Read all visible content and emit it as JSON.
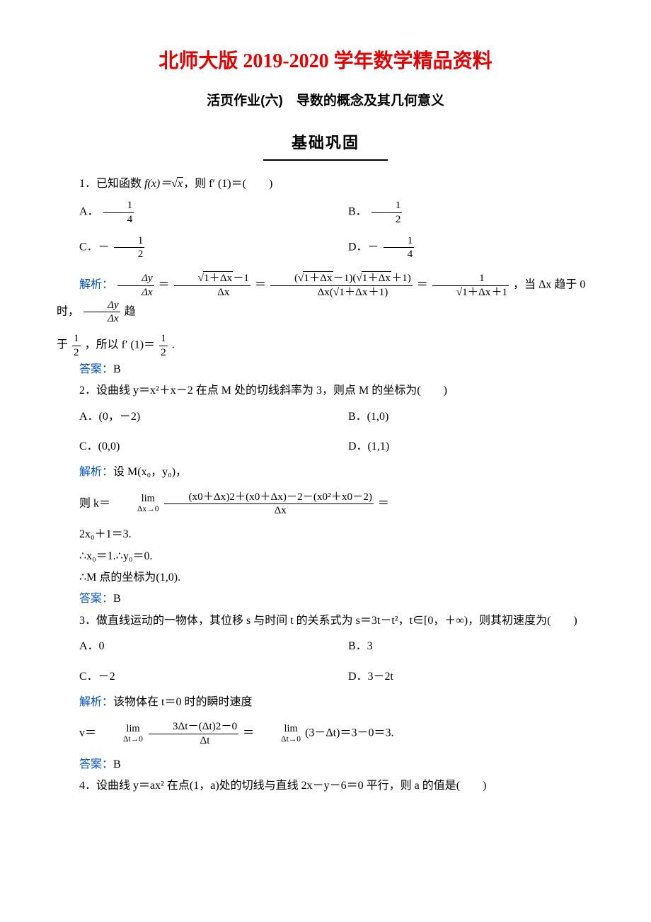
{
  "page": {
    "main_title": "北师大版 2019-2020 学年数学精品资料",
    "sub_title": "活页作业(六)　导数的概念及其几何意义",
    "section1_label": "基础巩固"
  },
  "q1": {
    "stem_prefix": "1．已知函数 ",
    "stem_fx": "f(x)＝",
    "stem_sqrt": "x",
    "stem_suffix": "，则 f′ (1)＝(　　)",
    "opt_a_label": "A．",
    "opt_a_num": "1",
    "opt_a_den": "4",
    "opt_b_label": "B．",
    "opt_b_num": "1",
    "opt_b_den": "2",
    "opt_c_label": "C．－",
    "opt_c_num": "1",
    "opt_c_den": "2",
    "opt_d_label": "D．－",
    "opt_d_num": "1",
    "opt_d_den": "4",
    "jiexi_label": "解析：",
    "lhs_num": "Δy",
    "lhs_den": "Δx",
    "eq": "＝",
    "f1_num_a": "1＋Δx",
    "f1_num_b": "－1",
    "f1_den": "Δx",
    "f2_num_a": "1＋Δx",
    "f2_num_b": "－1)(",
    "f2_num_c": "1＋Δx",
    "f2_num_d": "＋1)",
    "f2_den_a": "Δx(",
    "f2_den_b": "1＋Δx",
    "f2_den_c": "＋1)",
    "f3_num": "1",
    "f3_den_a": "1＋Δx",
    "f3_den_b": "＋1",
    "mid_text": "，当 Δx 趋于 0 时，",
    "end_num": "Δy",
    "end_den": "Δx",
    "end_text1": "趋",
    "end_text2": "于",
    "half_num": "1",
    "half_den": "2",
    "end_text3": "，所以 f′ (1)＝",
    "period": ".",
    "answer_label": "答案：",
    "answer": "B"
  },
  "q2": {
    "stem": "2．设曲线 y＝x²＋x－2 在点 M 处的切线斜率为 3，则点 M 的坐标为(　　)",
    "opt_a": "A．(0，－2)",
    "opt_b": "B．(1,0)",
    "opt_c": "C．(0,0)",
    "opt_d": "D．(1,1)",
    "jiexi_label": "解析：",
    "jiexi_text": "设 M(x₀，y₀)，",
    "line2_prefix": "则 k＝",
    "lim_top": "lim",
    "lim_bot": "Δx→0",
    "frac_num": "(x0＋Δx)2＋(x0＋Δx)－2－(x0²＋x0－2)",
    "frac_den": "Δx",
    "line2_suffix": "＝",
    "line3": "2x₀＋1＝3.",
    "line4": "∴x₀＝1.∴y₀＝0.",
    "line5": "∴M 点的坐标为(1,0).",
    "answer_label": "答案：",
    "answer": "B"
  },
  "q3": {
    "stem": "3．做直线运动的一物体，其位移 s 与时间 t 的关系式为 s＝3t－t²，t∈[0，＋∞)，则其初速度为(　　)",
    "opt_a": "A．0",
    "opt_b": "B．3",
    "opt_c": "C．－2",
    "opt_d": "D．3－2t",
    "jiexi_label": "解析：",
    "jiexi_text": "该物体在 t＝0 时的瞬时速度",
    "line2_prefix": "v＝",
    "lim_top": "lim",
    "lim_bot": "Δt→0",
    "frac_num": "3Δt－(Δt)2－0",
    "frac_den": "Δt",
    "mid_eq": "＝",
    "line2_suffix": "(3－Δt)＝3－0＝3.",
    "answer_label": "答案：",
    "answer": "B"
  },
  "q4": {
    "stem": "4．设曲线 y＝ax² 在点(1，a)处的切线与直线 2x－y－6＝0 平行，则 a 的值是(　　)"
  }
}
